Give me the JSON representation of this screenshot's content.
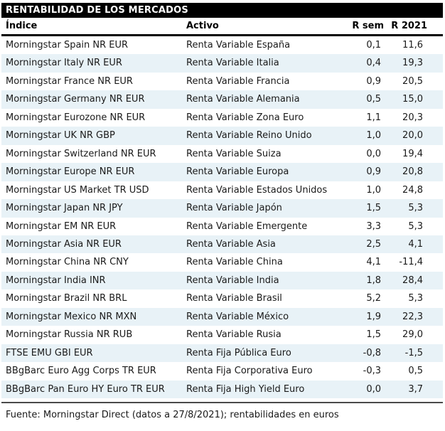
{
  "table": {
    "title": "RENTABILIDAD DE LOS MERCADOS",
    "columns": [
      "Índice",
      "Activo",
      "R sem",
      "R 2021"
    ],
    "rows": [
      {
        "indice": "Morningstar Spain NR EUR",
        "activo": "Renta Variable España",
        "r_sem": "0,1",
        "r_2021": "11,6"
      },
      {
        "indice": "Morningstar Italy NR EUR",
        "activo": "Renta Variable Italia",
        "r_sem": "0,4",
        "r_2021": "19,3"
      },
      {
        "indice": "Morningstar France NR EUR",
        "activo": "Renta Variable Francia",
        "r_sem": "0,9",
        "r_2021": "20,5"
      },
      {
        "indice": "Morningstar Germany NR EUR",
        "activo": "Renta Variable Alemania",
        "r_sem": "0,5",
        "r_2021": "15,0"
      },
      {
        "indice": "Morningstar Eurozone NR EUR",
        "activo": "Renta Variable Zona Euro",
        "r_sem": "1,1",
        "r_2021": "20,3"
      },
      {
        "indice": "Morningstar UK NR GBP",
        "activo": "Renta Variable Reino Unido",
        "r_sem": "1,0",
        "r_2021": "20,0"
      },
      {
        "indice": "Morningstar Switzerland NR EUR",
        "activo": "Renta Variable Suiza",
        "r_sem": "0,0",
        "r_2021": "19,4"
      },
      {
        "indice": "Morningstar Europe NR EUR",
        "activo": "Renta Variable Europa",
        "r_sem": "0,9",
        "r_2021": "20,8"
      },
      {
        "indice": "Morningstar US Market TR USD",
        "activo": "Renta Variable Estados Unidos",
        "r_sem": "1,0",
        "r_2021": "24,8"
      },
      {
        "indice": "Morningstar Japan NR JPY",
        "activo": "Renta Variable Japón",
        "r_sem": "1,5",
        "r_2021": "5,3"
      },
      {
        "indice": "Morningstar EM NR EUR",
        "activo": "Renta Variable Emergente",
        "r_sem": "3,3",
        "r_2021": "5,3"
      },
      {
        "indice": "Morningstar Asia NR EUR",
        "activo": "Renta Variable Asia",
        "r_sem": "2,5",
        "r_2021": "4,1"
      },
      {
        "indice": "Morningstar China NR CNY",
        "activo": "Renta Variable China",
        "r_sem": "4,1",
        "r_2021": "-11,4"
      },
      {
        "indice": "Morningstar India INR",
        "activo": "Renta Variable India",
        "r_sem": "1,8",
        "r_2021": "28,4"
      },
      {
        "indice": "Morningstar Brazil NR BRL",
        "activo": "Renta Variable Brasil",
        "r_sem": "5,2",
        "r_2021": "5,3"
      },
      {
        "indice": "Morningstar Mexico NR MXN",
        "activo": "Renta Variable México",
        "r_sem": "1,9",
        "r_2021": "22,3"
      },
      {
        "indice": "Morningstar Russia NR RUB",
        "activo": "Renta Variable Rusia",
        "r_sem": "1,5",
        "r_2021": "29,0"
      },
      {
        "indice": "FTSE EMU GBI EUR",
        "activo": "Renta Fija Pública Euro",
        "r_sem": "-0,8",
        "r_2021": "-1,5"
      },
      {
        "indice": "BBgBarc Euro Agg Corps TR EUR",
        "activo": "Renta Fija Corporativa Euro",
        "r_sem": "-0,3",
        "r_2021": "0,5"
      },
      {
        "indice": "BBgBarc Pan Euro HY Euro TR EUR",
        "activo": "Renta Fija High Yield Euro",
        "r_sem": "0,0",
        "r_2021": "3,7"
      }
    ]
  },
  "footer": {
    "source": "Fuente: Morningstar Direct (datos a 27/8/2021); rentabilidades en euros"
  },
  "colors": {
    "title_bg": "#000000",
    "title_fg": "#ffffff",
    "row_alt_bg": "#e8f2f7",
    "header_underline": "#000000",
    "bottom_rule": "#4a4a4a",
    "text": "#1a1a1a"
  }
}
